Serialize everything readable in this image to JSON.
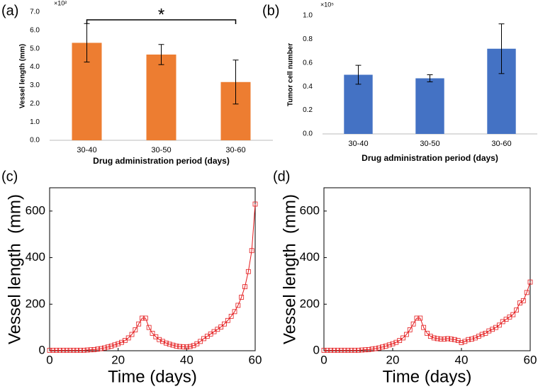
{
  "chart_data": [
    {
      "type": "bar",
      "panel_label": "(a)",
      "multiplier": "×10²",
      "ylabel": "Vessel length (mm)",
      "xlabel": "Drug administration period (days)",
      "categories": [
        "30-40",
        "30-50",
        "30-60"
      ],
      "values": [
        5.32,
        4.68,
        3.18
      ],
      "errors": [
        1.05,
        0.55,
        1.2
      ],
      "color": "#ed7d31",
      "ylim": [
        0,
        7
      ],
      "yticks": [
        {
          "value": 0,
          "label": "0.0"
        },
        {
          "value": 1,
          "label": "1.0"
        },
        {
          "value": 2,
          "label": "2.0"
        },
        {
          "value": 3,
          "label": "3.0"
        },
        {
          "value": 4,
          "label": "4.0"
        },
        {
          "value": 5,
          "label": "5.0"
        },
        {
          "value": 6,
          "label": "6.0"
        },
        {
          "value": 7,
          "label": "7.0"
        }
      ],
      "significance": {
        "label": "*",
        "between": [
          "30-40",
          "30-60"
        ]
      }
    },
    {
      "type": "bar",
      "panel_label": "(b)",
      "multiplier": "×10⁵",
      "ylabel": "Tumor cell number",
      "xlabel": "Drug administration period (days)",
      "categories": [
        "30-40",
        "30-50",
        "30-60"
      ],
      "values": [
        0.5,
        0.47,
        0.72
      ],
      "errors": [
        0.08,
        0.03,
        0.21
      ],
      "color": "#4472c4",
      "ylim": [
        0,
        1
      ],
      "yticks": [
        {
          "value": 0,
          "label": "0.0"
        },
        {
          "value": 0.2,
          "label": "0.2"
        },
        {
          "value": 0.4,
          "label": "0.4"
        },
        {
          "value": 0.6,
          "label": "0.6"
        },
        {
          "value": 0.8,
          "label": "0.8"
        },
        {
          "value": 1,
          "label": "1.0"
        }
      ]
    },
    {
      "type": "line",
      "panel_label": "(c)",
      "xlabel": "Time (days)",
      "ylabel": "Vessel length  (mm)",
      "color": "#e41a1c",
      "marker": "square",
      "x": [
        0,
        1,
        2,
        3,
        4,
        5,
        6,
        7,
        8,
        9,
        10,
        11,
        12,
        13,
        14,
        15,
        16,
        17,
        18,
        19,
        20,
        21,
        22,
        23,
        24,
        25,
        26,
        27,
        28,
        29,
        30,
        31,
        32,
        33,
        34,
        35,
        36,
        37,
        38,
        39,
        40,
        41,
        42,
        43,
        44,
        45,
        46,
        47,
        48,
        49,
        50,
        51,
        52,
        53,
        54,
        55,
        56,
        57,
        58,
        59,
        60
      ],
      "values": [
        2,
        2,
        2,
        2,
        2,
        2,
        2,
        2,
        2,
        2,
        2,
        3,
        4,
        5,
        7,
        9,
        12,
        16,
        20,
        25,
        30,
        36,
        44,
        55,
        70,
        90,
        115,
        140,
        140,
        100,
        75,
        60,
        48,
        40,
        33,
        28,
        24,
        20,
        18,
        17,
        16,
        18,
        22,
        30,
        40,
        52,
        62,
        72,
        82,
        92,
        102,
        115,
        130,
        148,
        168,
        195,
        230,
        275,
        340,
        430,
        630
      ],
      "xlim": [
        0,
        60
      ],
      "xticks": [
        0,
        20,
        40,
        60
      ],
      "ylim": [
        0,
        700
      ],
      "yticks": [
        0,
        200,
        400,
        600
      ]
    },
    {
      "type": "line",
      "panel_label": "(d)",
      "xlabel": "Time (days)",
      "ylabel": "Vessel length  (mm)",
      "color": "#e41a1c",
      "marker": "square",
      "x": [
        0,
        1,
        2,
        3,
        4,
        5,
        6,
        7,
        8,
        9,
        10,
        11,
        12,
        13,
        14,
        15,
        16,
        17,
        18,
        19,
        20,
        21,
        22,
        23,
        24,
        25,
        26,
        27,
        28,
        29,
        30,
        31,
        32,
        33,
        34,
        35,
        36,
        37,
        38,
        39,
        40,
        41,
        42,
        43,
        44,
        45,
        46,
        47,
        48,
        49,
        50,
        51,
        52,
        53,
        54,
        55,
        56,
        57,
        58,
        59,
        60
      ],
      "values": [
        2,
        2,
        2,
        2,
        2,
        2,
        2,
        2,
        2,
        2,
        2,
        3,
        4,
        5,
        7,
        9,
        12,
        16,
        20,
        25,
        30,
        36,
        44,
        55,
        70,
        90,
        115,
        140,
        140,
        100,
        75,
        62,
        55,
        52,
        50,
        50,
        52,
        50,
        48,
        44,
        35,
        40,
        48,
        50,
        55,
        62,
        70,
        75,
        85,
        92,
        100,
        110,
        125,
        135,
        145,
        155,
        175,
        205,
        215,
        250,
        295
      ],
      "xlim": [
        0,
        60
      ],
      "xticks": [
        0,
        20,
        40,
        60
      ],
      "ylim": [
        0,
        700
      ],
      "yticks": [
        0,
        200,
        400,
        600
      ]
    }
  ]
}
